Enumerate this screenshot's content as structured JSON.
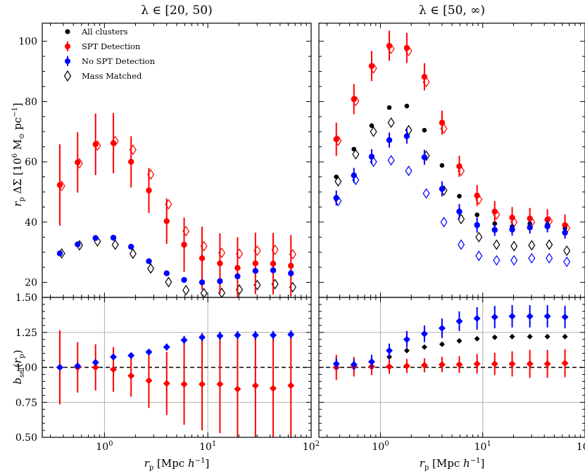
{
  "chart_data": [
    {
      "type": "scatter",
      "panel": "top-left",
      "title": "λ ∈ [20, 50)",
      "xlabel": "",
      "ylabel": "r_p ΔΣ [10^6 M☉ pc^-1]",
      "xscale": "log",
      "xlim": [
        0.25,
        100
      ],
      "ylim": [
        15,
        106
      ],
      "yticks": [
        20,
        40,
        60,
        80,
        100
      ],
      "grid": false,
      "x": [
        0.37,
        0.55,
        0.82,
        1.22,
        1.81,
        2.69,
        4.0,
        5.9,
        8.8,
        13.1,
        19.4,
        28.9,
        42.9,
        63.7
      ],
      "series": [
        {
          "name": "All clusters",
          "values": [
            29.8,
            32.8,
            34.9,
            35.0,
            31.9,
            27.0,
            23.0,
            20.8,
            20.0,
            20.4,
            22.0,
            23.8,
            24.0,
            23.0
          ]
        },
        {
          "name": "SPT Detection",
          "values": [
            52.3,
            59.8,
            65.8,
            66.2,
            60.0,
            50.5,
            40.3,
            32.5,
            28.0,
            26.3,
            24.8,
            26.3,
            26.2,
            25.5
          ],
          "err": [
            13.5,
            10.0,
            10.2,
            10.0,
            8.5,
            7.5,
            7.5,
            9.0,
            10.5,
            10.0,
            10.2,
            10.2,
            10.2,
            10.2
          ]
        },
        {
          "name": "No SPT Detection",
          "values": [
            29.6,
            32.6,
            34.7,
            34.8,
            31.8,
            27.0,
            23.0,
            20.8,
            20.0,
            20.4,
            22.0,
            23.8,
            24.0,
            23.0
          ],
          "err": [
            0.9,
            0.7,
            0.6,
            0.6,
            0.5,
            0.5,
            0.5,
            0.5,
            0.6,
            0.7,
            0.8,
            0.9,
            1.0,
            1.1
          ]
        },
        {
          "name": "Mass Matched",
          "values": [
            29.6,
            32.3,
            33.6,
            32.5,
            29.5,
            24.6,
            20.1,
            17.4,
            16.4,
            16.5,
            17.6,
            19.1,
            19.4,
            18.4
          ]
        },
        {
          "name": "Mass Matched (SPT)",
          "values": [
            52.0,
            59.5,
            65.4,
            66.9,
            64.0,
            55.8,
            45.9,
            37.0,
            32.0,
            29.8,
            29.5,
            30.5,
            30.8,
            29.3
          ]
        }
      ],
      "legend": {
        "location": "top-left",
        "entries": [
          "All clusters",
          "SPT Detection",
          "No SPT Detection",
          "Mass Matched"
        ]
      }
    },
    {
      "type": "scatter",
      "panel": "top-right",
      "title": "λ ∈ [50, ∞)",
      "xlabel": "",
      "ylabel": "",
      "xscale": "log",
      "xlim": [
        0.25,
        100
      ],
      "ylim": [
        15,
        106
      ],
      "grid": false,
      "x": [
        0.37,
        0.55,
        0.82,
        1.22,
        1.81,
        2.69,
        4.0,
        5.9,
        8.8,
        13.1,
        19.4,
        28.9,
        42.9,
        63.7
      ],
      "series": [
        {
          "name": "All clusters",
          "values": [
            55.0,
            64.2,
            72.0,
            78.0,
            78.5,
            70.5,
            58.8,
            48.6,
            42.4,
            39.5,
            38.5,
            39.5,
            39.2,
            38.0
          ]
        },
        {
          "name": "SPT Detection",
          "values": [
            67.5,
            80.8,
            91.8,
            98.5,
            97.8,
            88.2,
            73.0,
            58.5,
            48.8,
            43.5,
            41.5,
            41.2,
            40.8,
            39.0
          ],
          "err": [
            5.5,
            5.0,
            5.0,
            5.0,
            5.0,
            4.5,
            4.0,
            3.5,
            3.5,
            3.5,
            3.5,
            3.5,
            3.5,
            3.5
          ]
        },
        {
          "name": "No SPT Detection",
          "values": [
            48.0,
            55.5,
            61.7,
            67.2,
            68.5,
            61.5,
            51.0,
            43.5,
            39.0,
            37.4,
            37.5,
            38.2,
            38.6,
            36.5
          ],
          "err": [
            2.5,
            2.5,
            2.5,
            2.5,
            2.5,
            2.5,
            2.5,
            2.5,
            2.5,
            2.0,
            2.0,
            2.0,
            2.0,
            2.0
          ]
        },
        {
          "name": "Mass Matched",
          "values": [
            53.5,
            62.5,
            70.0,
            73.0,
            70.5,
            62.0,
            50.5,
            41.0,
            35.0,
            32.5,
            32.0,
            32.3,
            32.5,
            30.5
          ]
        },
        {
          "name": "Mass Matched (No SPT)",
          "values": [
            47.0,
            54.0,
            60.0,
            60.5,
            57.0,
            49.5,
            40.0,
            32.5,
            28.8,
            27.3,
            27.3,
            28.0,
            28.0,
            26.8
          ]
        },
        {
          "name": "Mass Matched (SPT)",
          "values": [
            67.0,
            80.2,
            91.0,
            97.5,
            96.8,
            86.5,
            71.0,
            57.0,
            47.5,
            42.5,
            40.0,
            40.0,
            40.3,
            38.0
          ]
        }
      ]
    },
    {
      "type": "scatter",
      "panel": "bottom-left",
      "xlabel": "r_p [Mpc h^-1]",
      "ylabel": "b_sel(r_p)",
      "xscale": "log",
      "xlim": [
        0.25,
        100
      ],
      "ylim": [
        0.5,
        1.5
      ],
      "yticks": [
        0.5,
        0.75,
        1.0,
        1.25,
        1.5
      ],
      "ytick_labels": [
        "0.50",
        "0.75",
        "1.00",
        "1.25",
        "1.50"
      ],
      "xticks": [
        1,
        10,
        100
      ],
      "grid": true,
      "reference_line": 1.0,
      "x": [
        0.37,
        0.55,
        0.82,
        1.22,
        1.81,
        2.69,
        4.0,
        5.9,
        8.8,
        13.1,
        19.4,
        28.9,
        42.9,
        63.7
      ],
      "series": [
        {
          "name": "All clusters",
          "values": [
            1.0,
            1.01,
            1.035,
            1.075,
            1.085,
            1.11,
            1.145,
            1.195,
            1.215,
            1.225,
            1.23,
            1.23,
            1.23,
            1.235
          ]
        },
        {
          "name": "SPT Detection",
          "values": [
            1.0,
            1.0,
            1.0,
            0.985,
            0.94,
            0.905,
            0.885,
            0.88,
            0.88,
            0.88,
            0.845,
            0.87,
            0.85,
            0.87
          ],
          "err": [
            0.265,
            0.18,
            0.165,
            0.16,
            0.15,
            0.195,
            0.225,
            0.29,
            0.33,
            0.35,
            0.355,
            0.37,
            0.365,
            0.37
          ]
        },
        {
          "name": "No SPT Detection",
          "values": [
            1.0,
            1.01,
            1.035,
            1.075,
            1.085,
            1.11,
            1.145,
            1.195,
            1.215,
            1.225,
            1.23,
            1.23,
            1.23,
            1.235
          ],
          "err": [
            0.02,
            0.02,
            0.02,
            0.02,
            0.02,
            0.02,
            0.025,
            0.03,
            0.03,
            0.03,
            0.03,
            0.03,
            0.03,
            0.03
          ]
        }
      ]
    },
    {
      "type": "scatter",
      "panel": "bottom-right",
      "xlabel": "r_p [Mpc h^-1]",
      "ylabel": "",
      "xscale": "log",
      "xlim": [
        0.25,
        100
      ],
      "ylim": [
        0.5,
        1.5
      ],
      "xticks": [
        1,
        10,
        100
      ],
      "grid": true,
      "reference_line": 1.0,
      "x": [
        0.37,
        0.55,
        0.82,
        1.22,
        1.81,
        2.69,
        4.0,
        5.9,
        8.8,
        13.1,
        19.4,
        28.9,
        42.9,
        63.7
      ],
      "series": [
        {
          "name": "All clusters",
          "values": [
            1.0,
            1.015,
            1.035,
            1.075,
            1.12,
            1.145,
            1.165,
            1.19,
            1.205,
            1.215,
            1.22,
            1.22,
            1.22,
            1.22
          ]
        },
        {
          "name": "SPT Detection",
          "values": [
            1.0,
            1.005,
            1.005,
            1.005,
            1.01,
            1.015,
            1.02,
            1.02,
            1.025,
            1.025,
            1.025,
            1.025,
            1.025,
            1.03
          ],
          "err": [
            0.09,
            0.07,
            0.06,
            0.05,
            0.05,
            0.05,
            0.055,
            0.06,
            0.07,
            0.08,
            0.09,
            0.1,
            0.1,
            0.1
          ]
        },
        {
          "name": "No SPT Detection",
          "values": [
            1.025,
            1.02,
            1.04,
            1.12,
            1.2,
            1.24,
            1.28,
            1.33,
            1.35,
            1.36,
            1.365,
            1.365,
            1.365,
            1.36
          ],
          "err": [
            0.04,
            0.04,
            0.05,
            0.05,
            0.06,
            0.06,
            0.07,
            0.07,
            0.08,
            0.08,
            0.08,
            0.08,
            0.08,
            0.08
          ]
        }
      ]
    }
  ],
  "legend_labels": {
    "all": "All clusters",
    "spt": "SPT Detection",
    "nospt": "No SPT Detection",
    "mm": "Mass Matched"
  },
  "titles": {
    "left": "λ ∈ [20, 50)",
    "right": "λ ∈ [50, ∞)"
  },
  "axis_labels": {
    "top_y": "r_p ΔΣ [10^6 M☉ pc^-1]",
    "bottom_y": "b_sel(r_p)",
    "x": "r_p [Mpc h^-1]"
  },
  "colors": {
    "all": "#000000",
    "spt": "#ff0000",
    "nospt": "#0000ff",
    "mm": "#000000",
    "grid": "#b0b0b0"
  }
}
